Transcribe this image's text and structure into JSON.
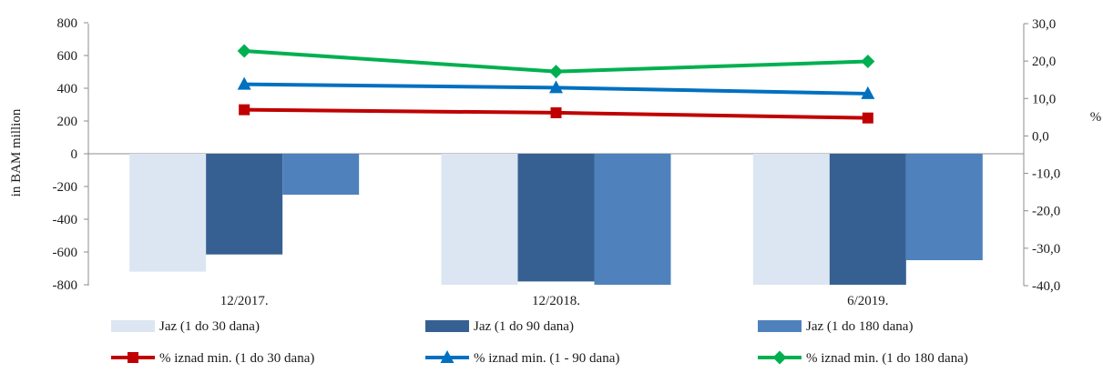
{
  "chart_data": {
    "type": "bar+line",
    "categories": [
      "12/2017.",
      "12/2018.",
      "6/2019."
    ],
    "y_left": {
      "label": "in BAM million",
      "ylim": [
        -800,
        800
      ],
      "ticks": [
        800,
        600,
        400,
        200,
        0,
        -200,
        -400,
        -600,
        -800
      ],
      "tick_labels": [
        "800",
        "600",
        "400",
        "200",
        "0",
        "-200",
        "-400",
        "-600",
        "-800"
      ]
    },
    "y_right": {
      "label": "%",
      "ylim": [
        -40,
        30
      ],
      "ticks": [
        30,
        20,
        10,
        0,
        -10,
        -20,
        -30,
        -40
      ],
      "tick_labels": [
        "30,0",
        "20,0",
        "10,0",
        "0,0",
        "-10,0",
        "-20,0",
        "-30,0",
        "-40,0"
      ]
    },
    "bar_series": [
      {
        "name": "Jaz (1 do 30 dana)",
        "color": "#dce6f2",
        "values": [
          -720,
          -800,
          -800
        ]
      },
      {
        "name": "Jaz (1 do 90 dana)",
        "color": "#376092",
        "values": [
          -615,
          -780,
          -800
        ]
      },
      {
        "name": "Jaz (1 do 180 dana)",
        "color": "#4f81bd",
        "values": [
          -250,
          -800,
          -650
        ]
      }
    ],
    "line_series": [
      {
        "name": "% iznad min. (1 do 30 dana)",
        "color": "#c00000",
        "marker": "square",
        "values": [
          7.0,
          6.2,
          4.8
        ]
      },
      {
        "name": "% iznad min. (1 - 90 dana)",
        "color": "#0070c0",
        "marker": "triangle",
        "values": [
          13.8,
          12.9,
          11.3
        ]
      },
      {
        "name": "% iznad min. (1 do 180 dana)",
        "color": "#00b050",
        "marker": "diamond",
        "values": [
          22.7,
          17.2,
          19.9
        ]
      }
    ],
    "grid": false,
    "legend_position": "bottom"
  }
}
